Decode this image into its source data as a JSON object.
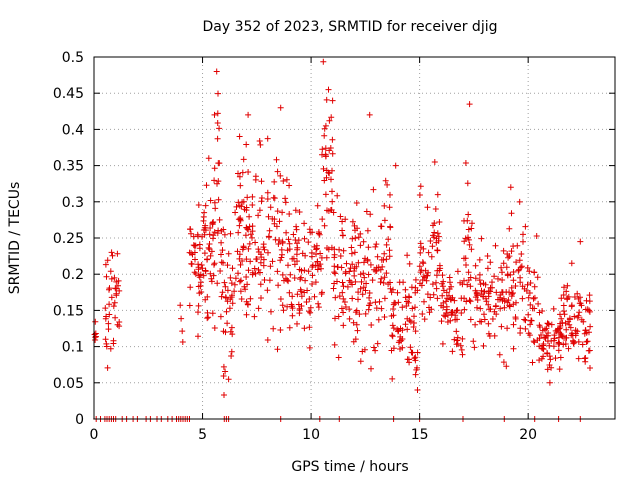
{
  "chart_data": {
    "type": "scatter",
    "title": "Day 352 of 2023, SRMTID for receiver djig",
    "xlabel": "GPS time / hours",
    "ylabel": "SRMTID / TECUs",
    "xlim": [
      0,
      24
    ],
    "ylim": [
      0,
      0.5
    ],
    "xticks": [
      0,
      5,
      10,
      15,
      20
    ],
    "yticks": [
      0,
      0.05,
      0.1,
      0.15,
      0.2,
      0.25,
      0.3,
      0.35,
      0.4,
      0.45,
      0.5
    ],
    "ytick_labels": [
      "0",
      "0.05",
      "0.1",
      "0.15",
      "0.2",
      "0.25",
      "0.3",
      "0.35",
      "0.4",
      "0.45",
      "0.5"
    ],
    "grid": true,
    "marker": "plus",
    "marker_color": "#e00000",
    "baseline_x": [
      0.1,
      0.3,
      0.5,
      0.6,
      0.7,
      0.8,
      0.9,
      1.0,
      1.3,
      1.5,
      1.8,
      2.0,
      2.4,
      2.6,
      2.9,
      3.1,
      3.4,
      3.6,
      3.8,
      3.9,
      4.0,
      4.1,
      4.2,
      4.3,
      4.4,
      6.0,
      6.1,
      6.2,
      8.6,
      10.4,
      11.3,
      13.8,
      15.0,
      17.0,
      18.9,
      20.3,
      21.4,
      22.4
    ],
    "segments": [
      {
        "x0": 0.0,
        "x1": 0.1,
        "mean": 0.11,
        "spread": 0.02,
        "n": 6
      },
      {
        "x0": 0.5,
        "x1": 1.2,
        "mean": 0.16,
        "spread": 0.05,
        "n": 40
      },
      {
        "x0": 3.9,
        "x1": 4.1,
        "mean": 0.14,
        "spread": 0.03,
        "n": 4
      },
      {
        "x0": 4.4,
        "x1": 5.0,
        "mean": 0.2,
        "spread": 0.05,
        "n": 40
      },
      {
        "x0": 5.0,
        "x1": 5.5,
        "mean": 0.24,
        "spread": 0.07,
        "n": 40
      },
      {
        "x0": 5.5,
        "x1": 5.8,
        "mean": 0.3,
        "spread": 0.12,
        "n": 25
      },
      {
        "x0": 5.8,
        "x1": 6.5,
        "mean": 0.17,
        "spread": 0.07,
        "n": 45
      },
      {
        "x0": 6.5,
        "x1": 8.0,
        "mean": 0.24,
        "spread": 0.08,
        "n": 100
      },
      {
        "x0": 8.0,
        "x1": 9.0,
        "mean": 0.25,
        "spread": 0.08,
        "n": 60
      },
      {
        "x0": 9.0,
        "x1": 10.0,
        "mean": 0.2,
        "spread": 0.06,
        "n": 60
      },
      {
        "x0": 10.0,
        "x1": 10.5,
        "mean": 0.22,
        "spread": 0.05,
        "n": 30
      },
      {
        "x0": 10.5,
        "x1": 11.0,
        "mean": 0.33,
        "spread": 0.1,
        "n": 40
      },
      {
        "x0": 11.0,
        "x1": 12.0,
        "mean": 0.2,
        "spread": 0.06,
        "n": 60
      },
      {
        "x0": 12.0,
        "x1": 13.2,
        "mean": 0.2,
        "spread": 0.07,
        "n": 70
      },
      {
        "x0": 13.2,
        "x1": 13.7,
        "mean": 0.22,
        "spread": 0.06,
        "n": 30
      },
      {
        "x0": 13.7,
        "x1": 15.0,
        "mean": 0.13,
        "spread": 0.04,
        "n": 70
      },
      {
        "x0": 15.0,
        "x1": 16.0,
        "mean": 0.21,
        "spread": 0.06,
        "n": 60
      },
      {
        "x0": 16.0,
        "x1": 17.0,
        "mean": 0.15,
        "spread": 0.04,
        "n": 55
      },
      {
        "x0": 17.0,
        "x1": 17.5,
        "mean": 0.22,
        "spread": 0.08,
        "n": 30
      },
      {
        "x0": 17.5,
        "x1": 19.0,
        "mean": 0.17,
        "spread": 0.05,
        "n": 80
      },
      {
        "x0": 19.0,
        "x1": 20.0,
        "mean": 0.2,
        "spread": 0.05,
        "n": 55
      },
      {
        "x0": 20.0,
        "x1": 20.5,
        "mean": 0.16,
        "spread": 0.05,
        "n": 25
      },
      {
        "x0": 20.5,
        "x1": 21.5,
        "mean": 0.11,
        "spread": 0.025,
        "n": 60
      },
      {
        "x0": 21.5,
        "x1": 22.0,
        "mean": 0.14,
        "spread": 0.04,
        "n": 30
      },
      {
        "x0": 22.0,
        "x1": 22.9,
        "mean": 0.13,
        "spread": 0.04,
        "n": 50
      }
    ],
    "peaks": [
      {
        "x": 5.65,
        "y": 0.48
      },
      {
        "x": 5.55,
        "y": 0.42
      },
      {
        "x": 7.1,
        "y": 0.42
      },
      {
        "x": 8.6,
        "y": 0.43
      },
      {
        "x": 10.8,
        "y": 0.455
      },
      {
        "x": 12.7,
        "y": 0.42
      },
      {
        "x": 17.3,
        "y": 0.435
      },
      {
        "x": 15.7,
        "y": 0.355
      },
      {
        "x": 13.9,
        "y": 0.35
      },
      {
        "x": 19.2,
        "y": 0.32
      },
      {
        "x": 14.9,
        "y": 0.04
      },
      {
        "x": 6.2,
        "y": 0.055
      },
      {
        "x": 21.0,
        "y": 0.05
      },
      {
        "x": 22.4,
        "y": 0.245
      }
    ]
  }
}
